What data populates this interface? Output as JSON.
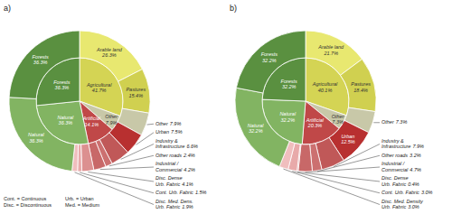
{
  "chart_data": [
    {
      "type": "pie",
      "title": "a)",
      "data_labels": true,
      "series": [
        {
          "categories": [
            "Agricultural",
            "Other",
            "Artificial",
            "Natural",
            "Forests"
          ],
          "values": [
            41.7,
            7.9,
            14.1,
            36.3,
            36.3
          ],
          "value_labels": [
            "41.7%",
            "7.9%",
            "14.1%",
            "36.3%",
            "36.3%"
          ],
          "colors": [
            "#d4d454",
            "#c8c8a8",
            "#c04848",
            "#82b462",
            "#5a9040"
          ]
        },
        {
          "categories": [
            "Arable land",
            "Pastures",
            "Other",
            "Urban",
            "Industry &\nInfrastructure",
            "Other roads",
            "Industrial /\nCommercial",
            "Disc. Dense\nUrb. Fabric",
            "Cont. Urb. Fabric",
            "Disc. Med. Dens.\nUrb. Fabric",
            "Natural",
            "Forests"
          ],
          "values": [
            26.3,
            15.4,
            7.9,
            7.5,
            6.6,
            2.4,
            4.2,
            4.1,
            1.5,
            1.9,
            36.3,
            36.3
          ],
          "value_labels": [
            "26.3%",
            "15.4%",
            "7.9%",
            "7.5%",
            "6.6%",
            "2.4%",
            "4.2%",
            "4.1%",
            "1.5%",
            "1.9%",
            "36.3%",
            "36.3%"
          ],
          "colors": [
            "#e8e870",
            "#d0d050",
            "#c8c8a8",
            "#b83030",
            "#c05858",
            "#cc7070",
            "#c86868",
            "#dc9090",
            "#e8aaaa",
            "#f0bebe",
            "#82b462",
            "#5a9040"
          ]
        }
      ],
      "annotations": [
        "Cont. = Continuous\nDisc. = Discontinuous",
        "Urb. = Urban\nMed. = Medium"
      ]
    },
    {
      "type": "pie",
      "title": "b)",
      "data_labels": true,
      "series": [
        {
          "categories": [
            "Agricultural",
            "Other",
            "Artificial",
            "Natural",
            "Forests"
          ],
          "values": [
            40.1,
            7.3,
            20.3,
            32.2,
            32.2
          ],
          "value_labels": [
            "40.1%",
            "7.3%",
            "20.3%",
            "32.2%",
            "32.2%"
          ],
          "colors": [
            "#d4d454",
            "#c8c8a8",
            "#c04848",
            "#82b462",
            "#5a9040"
          ]
        },
        {
          "categories": [
            "Arable land",
            "Pastures",
            "Other",
            "Urban",
            "Industry &\nInfrastructure",
            "Other roads",
            "Industrial /\nCommercial",
            "Disc. Dense\nUrb. Fabric",
            "Cont. Urb. Fabric",
            "Disc. Med. Density\nUrb. Fabric",
            "Natural",
            "Forests"
          ],
          "values": [
            21.7,
            18.4,
            7.3,
            12.5,
            7.9,
            3.2,
            4.7,
            0.4,
            3.0,
            3.0,
            32.2,
            32.2
          ],
          "value_labels": [
            "21.7%",
            "18.4%",
            "7.3%",
            "12.5%",
            "7.9%",
            "3.2%",
            "4.7%",
            "0.4%",
            "3.0%",
            "3.0%",
            "32.2%",
            "32.2%"
          ],
          "colors": [
            "#e8e870",
            "#d0d050",
            "#c8c8a8",
            "#b83030",
            "#c05858",
            "#cc7070",
            "#c86868",
            "#dc9090",
            "#e8aaaa",
            "#f0bebe",
            "#82b462",
            "#5a9040"
          ]
        }
      ]
    }
  ]
}
